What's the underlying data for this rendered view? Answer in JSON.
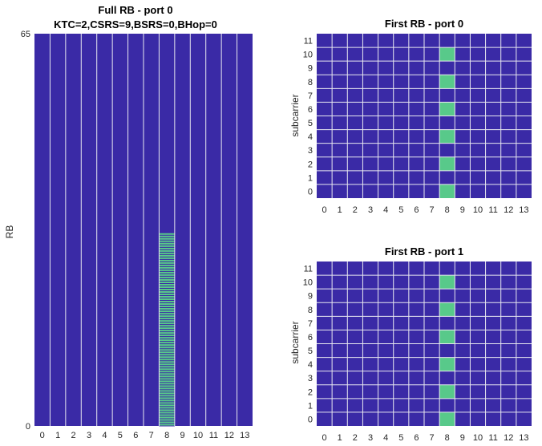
{
  "colors": {
    "background": "#3a2aa6",
    "grid": "#e8e8f0",
    "active": "#58c98a",
    "axis_tick": "#262626"
  },
  "chart_data": [
    {
      "type": "heatmap",
      "title": "Full RB - port 0",
      "subtitle": "KTC=2,CSRS=9,BSRS=0,BHop=0",
      "xlabel": "",
      "ylabel": "RB",
      "x_ticks": [
        "0",
        "1",
        "2",
        "3",
        "4",
        "5",
        "6",
        "7",
        "8",
        "9",
        "10",
        "11",
        "12",
        "13"
      ],
      "y_ticks": [
        "0",
        "65"
      ],
      "xlim": [
        0,
        13
      ],
      "ylim": [
        0,
        65
      ],
      "active_symbol": 8,
      "active_rb_range": [
        0,
        32
      ],
      "rows_striped": true
    },
    {
      "type": "heatmap",
      "title": "First RB - port 0",
      "xlabel": "",
      "ylabel": "subcarrier",
      "x_ticks": [
        "0",
        "1",
        "2",
        "3",
        "4",
        "5",
        "6",
        "7",
        "8",
        "9",
        "10",
        "11",
        "12",
        "13"
      ],
      "y_ticks": [
        "0",
        "1",
        "2",
        "3",
        "4",
        "5",
        "6",
        "7",
        "8",
        "9",
        "10",
        "11"
      ],
      "active_symbol": 8,
      "active_subcarriers": [
        0,
        2,
        4,
        6,
        8,
        10
      ]
    },
    {
      "type": "heatmap",
      "title": "First RB - port 1",
      "xlabel": "",
      "ylabel": "subcarrier",
      "x_ticks": [
        "0",
        "1",
        "2",
        "3",
        "4",
        "5",
        "6",
        "7",
        "8",
        "9",
        "10",
        "11",
        "12",
        "13"
      ],
      "y_ticks": [
        "0",
        "1",
        "2",
        "3",
        "4",
        "5",
        "6",
        "7",
        "8",
        "9",
        "10",
        "11"
      ],
      "active_symbol": 8,
      "active_subcarriers": [
        0,
        2,
        4,
        6,
        8,
        10
      ]
    }
  ]
}
